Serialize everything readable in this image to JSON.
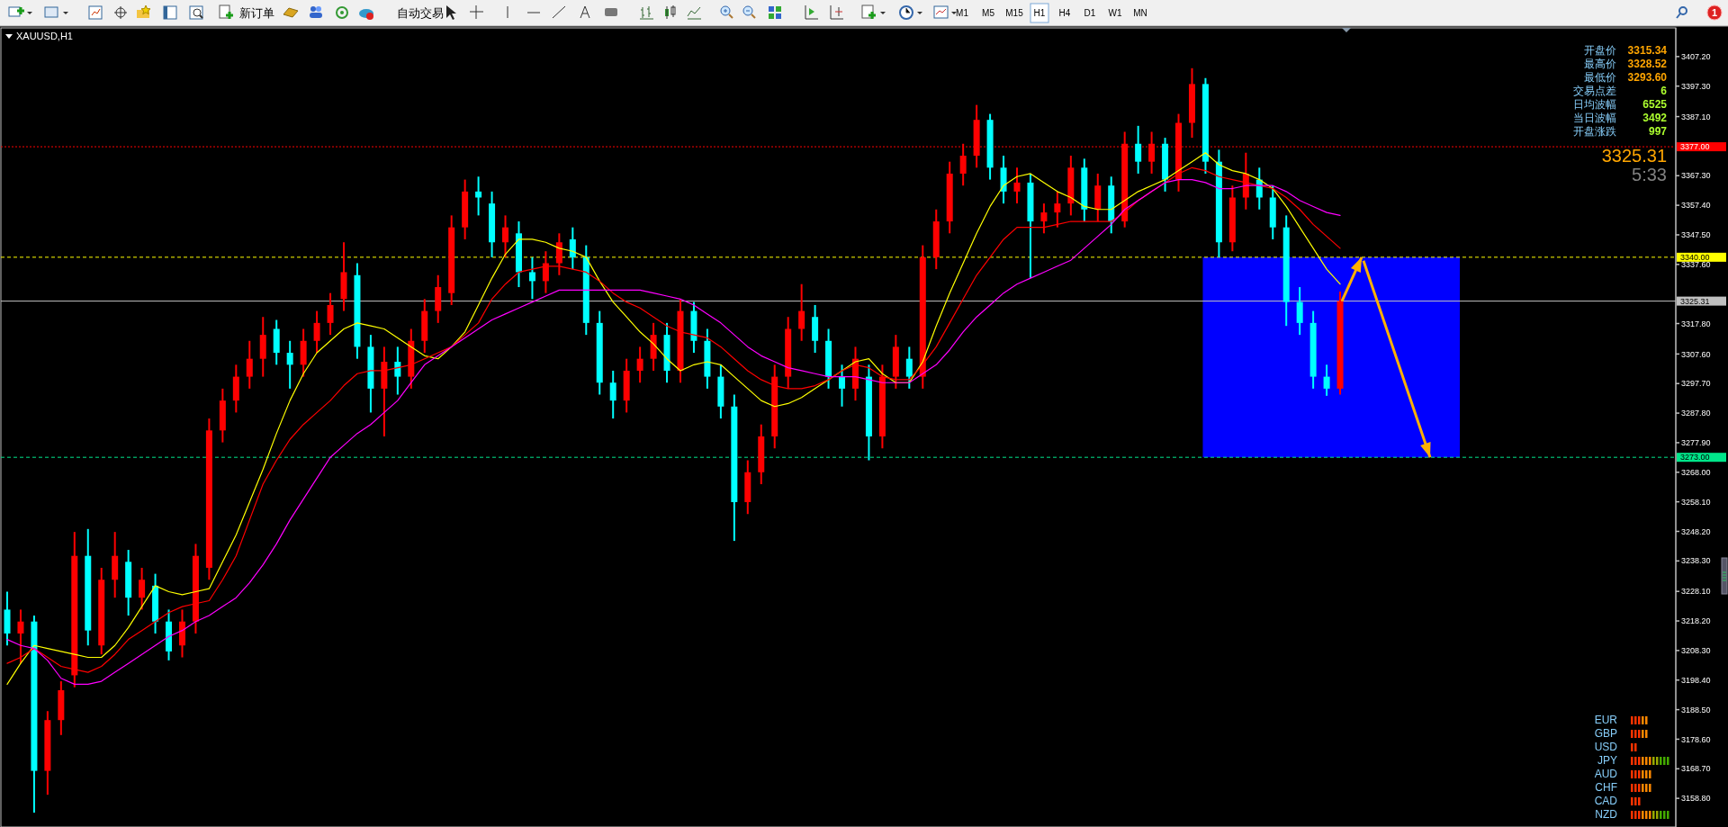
{
  "chart_data": {
    "type": "candlestick",
    "title": "XAUUSD,H1",
    "categories": [
      null,
      null,
      null,
      null,
      null,
      null,
      null,
      null,
      null,
      null,
      null,
      null,
      null,
      null,
      null,
      null,
      null,
      null,
      null,
      null,
      null,
      null,
      null,
      null,
      null,
      null,
      null,
      null,
      null,
      null,
      null,
      null,
      null,
      null,
      null,
      null,
      null,
      null,
      null,
      null,
      null,
      null,
      null,
      null,
      null,
      null,
      null,
      null,
      null,
      null,
      null,
      null,
      null,
      null,
      null,
      null,
      null,
      null,
      null,
      null,
      null,
      null,
      null,
      null,
      null,
      null,
      null,
      null,
      null,
      null,
      null,
      null,
      null,
      null,
      null,
      null,
      null,
      null,
      null,
      null,
      null,
      null,
      null,
      null,
      null,
      null,
      null,
      null,
      null,
      null,
      null,
      null,
      null,
      null,
      null,
      null,
      null,
      null,
      null,
      null
    ],
    "ohlc": [
      [
        3222,
        3228,
        3210,
        3214
      ],
      [
        3214,
        3222,
        3204,
        3218
      ],
      [
        3218,
        3220,
        3154,
        3168
      ],
      [
        3168,
        3188,
        3160,
        3185
      ],
      [
        3185,
        3198,
        3180,
        3195
      ],
      [
        3200,
        3248,
        3196,
        3240
      ],
      [
        3240,
        3249,
        3210,
        3215
      ],
      [
        3210,
        3236,
        3207,
        3232
      ],
      [
        3232,
        3248,
        3226,
        3240
      ],
      [
        3238,
        3242,
        3220,
        3226
      ],
      [
        3226,
        3236,
        3222,
        3232
      ],
      [
        3230,
        3234,
        3214,
        3218
      ],
      [
        3218,
        3222,
        3205,
        3208
      ],
      [
        3210,
        3222,
        3206,
        3218
      ],
      [
        3218,
        3244,
        3214,
        3240
      ],
      [
        3236,
        3286,
        3232,
        3282
      ],
      [
        3282,
        3296,
        3278,
        3292
      ],
      [
        3292,
        3304,
        3288,
        3300
      ],
      [
        3300,
        3312,
        3296,
        3306
      ],
      [
        3306,
        3320,
        3300,
        3314
      ],
      [
        3316,
        3319,
        3304,
        3308
      ],
      [
        3308,
        3312,
        3296,
        3304
      ],
      [
        3304,
        3316,
        3300,
        3312
      ],
      [
        3312,
        3322,
        3308,
        3318
      ],
      [
        3318,
        3328,
        3314,
        3324
      ],
      [
        3326,
        3345,
        3322,
        3335
      ],
      [
        3334,
        3338,
        3306,
        3310
      ],
      [
        3310,
        3314,
        3288,
        3296
      ],
      [
        3296,
        3310,
        3280,
        3305
      ],
      [
        3305,
        3310,
        3294,
        3300
      ],
      [
        3300,
        3316,
        3296,
        3312
      ],
      [
        3312,
        3326,
        3308,
        3322
      ],
      [
        3322,
        3334,
        3318,
        3330
      ],
      [
        3328,
        3354,
        3324,
        3350
      ],
      [
        3350,
        3366,
        3346,
        3362
      ],
      [
        3362,
        3367,
        3354,
        3360
      ],
      [
        3358,
        3362,
        3340,
        3345
      ],
      [
        3345,
        3354,
        3340,
        3350
      ],
      [
        3348,
        3352,
        3330,
        3335
      ],
      [
        3335,
        3340,
        3326,
        3332
      ],
      [
        3332,
        3342,
        3328,
        3338
      ],
      [
        3338,
        3348,
        3334,
        3345
      ],
      [
        3346,
        3350,
        3336,
        3340
      ],
      [
        3340,
        3344,
        3314,
        3318
      ],
      [
        3318,
        3322,
        3294,
        3298
      ],
      [
        3298,
        3302,
        3286,
        3292
      ],
      [
        3292,
        3306,
        3288,
        3302
      ],
      [
        3302,
        3310,
        3298,
        3306
      ],
      [
        3306,
        3318,
        3302,
        3314
      ],
      [
        3314,
        3318,
        3298,
        3302
      ],
      [
        3302,
        3326,
        3298,
        3322
      ],
      [
        3322,
        3325,
        3308,
        3312
      ],
      [
        3312,
        3316,
        3296,
        3300
      ],
      [
        3300,
        3304,
        3286,
        3290
      ],
      [
        3290,
        3294,
        3245,
        3258
      ],
      [
        3258,
        3272,
        3254,
        3268
      ],
      [
        3268,
        3284,
        3264,
        3280
      ],
      [
        3280,
        3304,
        3276,
        3300
      ],
      [
        3300,
        3320,
        3296,
        3316
      ],
      [
        3316,
        3331,
        3312,
        3322
      ],
      [
        3320,
        3324,
        3308,
        3312
      ],
      [
        3312,
        3316,
        3296,
        3300
      ],
      [
        3300,
        3304,
        3290,
        3296
      ],
      [
        3296,
        3310,
        3292,
        3306
      ],
      [
        3300,
        3304,
        3272,
        3280
      ],
      [
        3280,
        3304,
        3276,
        3300
      ],
      [
        3300,
        3314,
        3296,
        3310
      ],
      [
        3306,
        3310,
        3296,
        3300
      ],
      [
        3300,
        3344,
        3296,
        3340
      ],
      [
        3340,
        3356,
        3336,
        3352
      ],
      [
        3352,
        3372,
        3348,
        3368
      ],
      [
        3368,
        3378,
        3364,
        3374
      ],
      [
        3374,
        3391,
        3370,
        3386
      ],
      [
        3386,
        3388,
        3366,
        3370
      ],
      [
        3370,
        3374,
        3358,
        3362
      ],
      [
        3362,
        3370,
        3358,
        3365
      ],
      [
        3365,
        3368,
        3333,
        3352
      ],
      [
        3352,
        3358,
        3348,
        3355
      ],
      [
        3355,
        3362,
        3350,
        3358
      ],
      [
        3358,
        3374,
        3354,
        3370
      ],
      [
        3370,
        3373,
        3352,
        3356
      ],
      [
        3356,
        3368,
        3352,
        3364
      ],
      [
        3364,
        3367,
        3348,
        3352
      ],
      [
        3352,
        3382,
        3350,
        3378
      ],
      [
        3378,
        3384,
        3368,
        3372
      ],
      [
        3372,
        3382,
        3368,
        3378
      ],
      [
        3378,
        3380,
        3362,
        3366
      ],
      [
        3366,
        3388,
        3362,
        3385
      ],
      [
        3385,
        3403.3,
        3380,
        3398
      ],
      [
        3398,
        3400,
        3368,
        3372
      ],
      [
        3372,
        3376,
        3340,
        3345
      ],
      [
        3345,
        3364,
        3342,
        3360
      ],
      [
        3360,
        3375,
        3356,
        3368
      ],
      [
        3366,
        3370,
        3356,
        3360
      ],
      [
        3360,
        3364,
        3346,
        3350
      ],
      [
        3350,
        3354,
        3317,
        3325
      ],
      [
        3325,
        3330,
        3314,
        3318
      ],
      [
        3318,
        3322,
        3296,
        3300
      ],
      [
        3300,
        3304,
        3293.6,
        3296
      ],
      [
        3296,
        3328.52,
        3294,
        3325.31
      ]
    ],
    "series": [
      {
        "type": "line",
        "color": "#ffff00",
        "values": [
          3197,
          3204,
          3210,
          3209,
          3208,
          3207,
          3206,
          3206,
          3210,
          3216,
          3223,
          3230,
          3228,
          3227,
          3228,
          3229,
          3238,
          3247,
          3258,
          3269,
          3281,
          3292,
          3301,
          3308,
          3312,
          3316,
          3318,
          3317,
          3316,
          3313,
          3310,
          3307,
          3306,
          3310,
          3315,
          3324,
          3333,
          3341,
          3346,
          3346,
          3345,
          3343,
          3342,
          3340,
          3332,
          3325,
          3320,
          3315,
          3311,
          3306,
          3302,
          3304,
          3305,
          3304,
          3300,
          3296,
          3292,
          3290,
          3291,
          3293,
          3296,
          3299,
          3302,
          3305,
          3306,
          3301,
          3298,
          3298,
          3305,
          3317,
          3328,
          3338,
          3348,
          3357,
          3364,
          3367,
          3368,
          3365,
          3362,
          3360,
          3357,
          3356,
          3356,
          3359,
          3362,
          3364,
          3366,
          3369,
          3372,
          3375,
          3371,
          3369,
          3368,
          3366,
          3363,
          3357,
          3350,
          3343,
          3336,
          3331
        ]
      },
      {
        "type": "line",
        "color": "#ff0000",
        "values": [
          3204,
          3206,
          3209,
          3206,
          3203,
          3202,
          3201,
          3203,
          3207,
          3212,
          3215,
          3218,
          3221,
          3223,
          3224,
          3225,
          3232,
          3240,
          3252,
          3264,
          3272,
          3279,
          3284,
          3288,
          3292,
          3297,
          3301,
          3302,
          3302,
          3303,
          3304,
          3306,
          3308,
          3310,
          3314,
          3318,
          3326,
          3331,
          3335,
          3336,
          3337,
          3337,
          3336,
          3335,
          3332,
          3328,
          3325,
          3323,
          3320,
          3317,
          3315,
          3314,
          3313,
          3310,
          3306,
          3302,
          3299,
          3297,
          3296,
          3296,
          3297,
          3299,
          3302,
          3304,
          3303,
          3300,
          3299,
          3299,
          3304,
          3310,
          3318,
          3326,
          3334,
          3340,
          3346,
          3350,
          3350,
          3350,
          3351,
          3352,
          3352,
          3352,
          3352,
          3355,
          3359,
          3362,
          3365,
          3368,
          3370,
          3369,
          3367,
          3366,
          3365,
          3364,
          3363,
          3360,
          3356,
          3351,
          3347,
          3343
        ]
      },
      {
        "type": "line",
        "color": "#ff00ff",
        "values": [
          3212,
          3210,
          3209,
          3205,
          3199,
          3197,
          3197,
          3198,
          3201,
          3204,
          3207,
          3210,
          3213,
          3215,
          3218,
          3220,
          3223,
          3226,
          3231,
          3237,
          3244,
          3252,
          3259,
          3266,
          3273,
          3277,
          3281,
          3284,
          3288,
          3292,
          3298,
          3304,
          3307,
          3310,
          3313,
          3316,
          3319,
          3321,
          3323,
          3325,
          3327,
          3329,
          3329,
          3329,
          3329,
          3329,
          3329,
          3329,
          3328,
          3327,
          3326,
          3324,
          3321,
          3318,
          3314,
          3310,
          3307,
          3305,
          3303,
          3302,
          3301,
          3300,
          3300,
          3300,
          3299,
          3298,
          3298,
          3298,
          3301,
          3304,
          3309,
          3315,
          3320,
          3324,
          3328,
          3331,
          3333,
          3335,
          3337,
          3339,
          3343,
          3347,
          3351,
          3356,
          3359,
          3362,
          3365,
          3366,
          3366,
          3365,
          3363,
          3363,
          3364,
          3364,
          3364,
          3362,
          3359,
          3357,
          3355,
          3354
        ]
      }
    ],
    "ylim": [
      3149.2,
      3416.5
    ],
    "yticks": [
      {
        "value": 3407.2,
        "label": "3407.20"
      },
      {
        "value": 3397.3,
        "label": "3397.30"
      },
      {
        "value": 3387.1,
        "label": "3387.10"
      },
      {
        "value": 3367.3,
        "label": "3367.30"
      },
      {
        "value": 3357.4,
        "label": "3357.40"
      },
      {
        "value": 3347.5,
        "label": "3347.50"
      },
      {
        "value": 3337.6,
        "label": "3337.60"
      },
      {
        "value": 3317.8,
        "label": "3317.80"
      },
      {
        "value": 3307.6,
        "label": "3307.60"
      },
      {
        "value": 3297.7,
        "label": "3297.70"
      },
      {
        "value": 3287.8,
        "label": "3287.80"
      },
      {
        "value": 3277.9,
        "label": "3277.90"
      },
      {
        "value": 3268,
        "label": "3268.00"
      },
      {
        "value": 3258.1,
        "label": "3258.10"
      },
      {
        "value": 3248.2,
        "label": "3248.20"
      },
      {
        "value": 3238.3,
        "label": "3238.30"
      },
      {
        "value": 3228.1,
        "label": "3228.10"
      },
      {
        "value": 3218.2,
        "label": "3218.20"
      },
      {
        "value": 3208.3,
        "label": "3208.30"
      },
      {
        "value": 3198.4,
        "label": "3198.40"
      },
      {
        "value": 3188.5,
        "label": "3188.50"
      },
      {
        "value": 3178.6,
        "label": "3178.60"
      },
      {
        "value": 3168.7,
        "label": "3168.70"
      },
      {
        "value": 3158.8,
        "label": "3158.80"
      }
    ],
    "ref_lines": [
      {
        "axis": "y",
        "value": 3377,
        "label": "3377.00",
        "color": "#ff0000",
        "line_style": "dotted"
      },
      {
        "axis": "y",
        "value": 3340,
        "label": "3340.00",
        "color": "#ffff00",
        "line_style": "dashed"
      },
      {
        "axis": "y",
        "value": 3325.31,
        "label": "3325.31",
        "color": "#c0c0c0",
        "line_style": "solid"
      },
      {
        "axis": "y",
        "value": 3273,
        "label": "3273.00",
        "color": "#00e68a",
        "line_style": "dashed"
      }
    ],
    "bands": [
      {
        "axis": "y",
        "from": 3273,
        "to": 3340,
        "color": "#0000ff"
      }
    ],
    "tick_labels": "y",
    "annotations": [
      "开盘价",
      "3315.34",
      "最高价",
      "3328.52",
      "最低价",
      "3293.60",
      "交易点差",
      "6",
      "日均波幅",
      "6525",
      "当日波幅",
      "3492",
      "开盘涨跌",
      "997",
      "3325.31",
      "5:33",
      "EUR",
      "GBP",
      "USD",
      "JPY",
      "AUD",
      "CHF",
      "CAD",
      "NZD",
      "新订单",
      "自动交易",
      "M1",
      "M5",
      "M15",
      "H1",
      "H4",
      "D1",
      "W1",
      "MN",
      "1"
    ]
  }
}
